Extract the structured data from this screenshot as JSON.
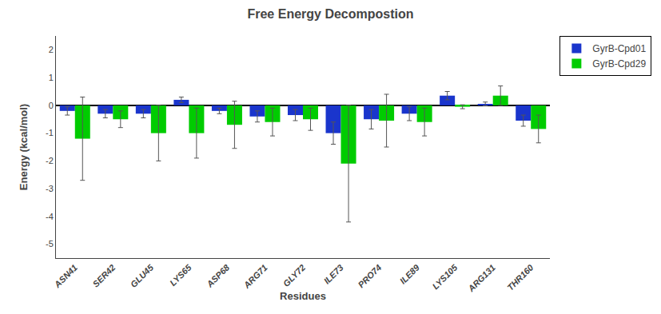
{
  "chart_data": {
    "type": "bar",
    "title": "Free Energy Decompostion",
    "xlabel": "Residues",
    "ylabel": "Energy (kcal/mol)",
    "categories": [
      "ASN41",
      "SER42",
      "GLU45",
      "LYS65",
      "ASP68",
      "ARG71",
      "GLY72",
      "ILE73",
      "PRO74",
      "ILE89",
      "LYS105",
      "ARG131",
      "THR160"
    ],
    "series": [
      {
        "name": "GyrB-Cpd01",
        "color": "#1a35cc",
        "values": [
          -0.2,
          -0.3,
          -0.3,
          0.2,
          -0.2,
          -0.4,
          -0.35,
          -1.0,
          -0.5,
          -0.3,
          0.35,
          0.05,
          -0.55
        ],
        "errors": [
          0.15,
          0.15,
          0.15,
          0.1,
          0.1,
          0.2,
          0.2,
          0.4,
          0.35,
          0.25,
          0.15,
          0.07,
          0.2
        ]
      },
      {
        "name": "GyrB-Cpd29",
        "color": "#00cc00",
        "values": [
          -1.2,
          -0.5,
          -1.0,
          -1.0,
          -0.7,
          -0.6,
          -0.5,
          -2.1,
          -0.55,
          -0.6,
          -0.05,
          0.35,
          -0.85
        ],
        "errors": [
          1.5,
          0.3,
          1.0,
          0.9,
          0.85,
          0.5,
          0.4,
          2.1,
          0.95,
          0.5,
          0.07,
          0.35,
          0.5
        ]
      }
    ],
    "ylim": [
      -5.5,
      2.5
    ],
    "yticks": [
      -5,
      -4,
      -3,
      -2,
      -1,
      0,
      1,
      2
    ],
    "grid": false,
    "legend": "upper right"
  }
}
